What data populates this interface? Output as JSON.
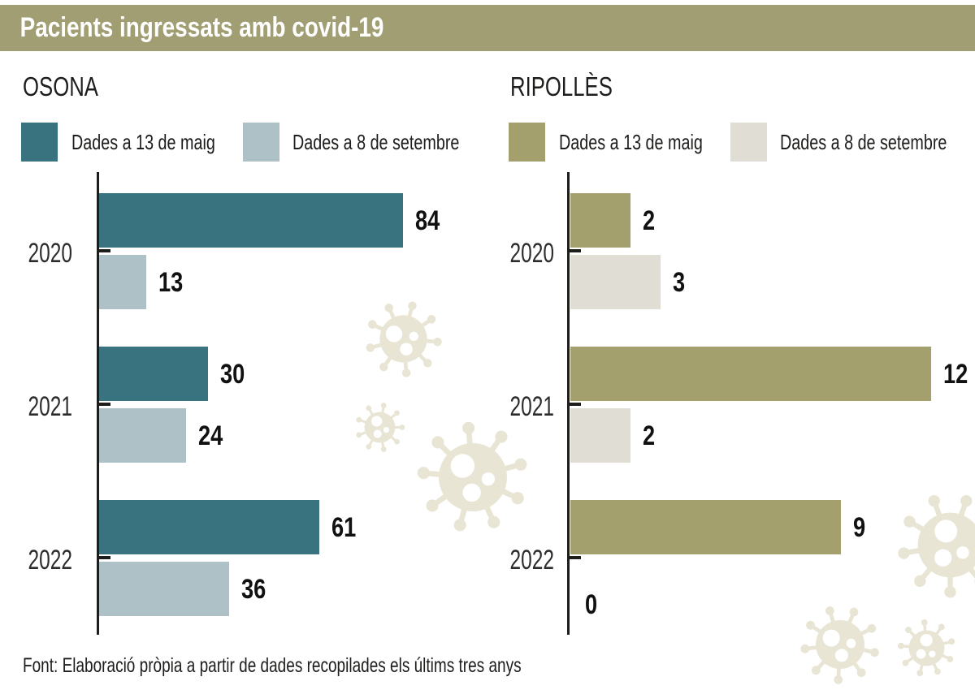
{
  "title_bar": {
    "title": "Pacients ingressats amb covid-19",
    "background": "#a29e73"
  },
  "footer": {
    "text": "Font: Elaboració pròpia a partir de dades recopilades els últims tres anys"
  },
  "decor": {
    "icon": "virus-icon",
    "color": "#e8e5d4"
  },
  "chart_data": [
    {
      "type": "bar",
      "orientation": "horizontal",
      "title": "OSONA",
      "categories": [
        "2020",
        "2021",
        "2022"
      ],
      "series": [
        {
          "name": "Dades a 13 de maig",
          "color": "#38737f",
          "values": [
            84,
            30,
            61
          ]
        },
        {
          "name": "Dades a 8 de setembre",
          "color": "#adc1c7",
          "values": [
            13,
            24,
            36
          ]
        }
      ],
      "xlim": [
        0,
        90
      ],
      "value_labels": true,
      "legend_position": "top",
      "grid": false
    },
    {
      "type": "bar",
      "orientation": "horizontal",
      "title": "RIPOLLÈS",
      "categories": [
        "2020",
        "2021",
        "2022"
      ],
      "series": [
        {
          "name": "Dades a 13 de maig",
          "color": "#a3a06e",
          "values": [
            2,
            12,
            9
          ]
        },
        {
          "name": "Dades a 8 de setembre",
          "color": "#e0ded4",
          "values": [
            3,
            2,
            0
          ]
        }
      ],
      "xlim": [
        0,
        13
      ],
      "value_labels": true,
      "legend_position": "top",
      "grid": false
    }
  ]
}
